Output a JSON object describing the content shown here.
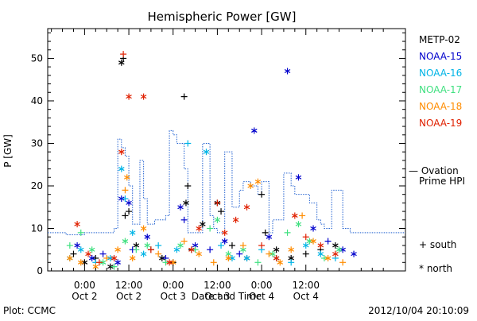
{
  "chart_data": {
    "type": "scatter",
    "title": "Hemispheric Power [GW]",
    "ylabel": "P [GW]",
    "xlabel": "Date and Time",
    "ylim": [
      0,
      57
    ],
    "xlim_hours": [
      -10,
      87
    ],
    "yticks": [
      0,
      10,
      20,
      30,
      40,
      50
    ],
    "xticks": [
      {
        "h": 0,
        "time": "0:00",
        "date": "Oct 2"
      },
      {
        "h": 12,
        "time": "12:00",
        "date": "Oct 2"
      },
      {
        "h": 24,
        "time": "0:00",
        "date": "Oct 3"
      },
      {
        "h": 36,
        "time": "12:00",
        "date": "Oct 3"
      },
      {
        "h": 48,
        "time": "0:00",
        "date": "Oct 4"
      },
      {
        "h": 60,
        "time": "12:00",
        "date": "Oct 4"
      }
    ],
    "series": [
      {
        "name": "METP-02",
        "color": "#000000",
        "points": [
          [
            -3,
            4,
            "s"
          ],
          [
            0,
            2,
            "n"
          ],
          [
            3,
            3,
            "s"
          ],
          [
            7,
            1,
            "n"
          ],
          [
            10,
            49,
            "n"
          ],
          [
            10.5,
            50,
            "s"
          ],
          [
            11,
            13,
            "s"
          ],
          [
            12,
            14,
            "s"
          ],
          [
            14,
            6,
            "n"
          ],
          [
            18,
            5,
            "s"
          ],
          [
            21,
            3,
            "n"
          ],
          [
            24,
            2,
            "s"
          ],
          [
            27,
            41,
            "s"
          ],
          [
            28,
            20,
            "s"
          ],
          [
            27.5,
            16,
            "n"
          ],
          [
            29,
            5,
            "s"
          ],
          [
            32,
            11,
            "n"
          ],
          [
            36,
            16,
            "n"
          ],
          [
            37,
            14,
            "s"
          ],
          [
            40,
            6,
            "s"
          ],
          [
            44,
            3,
            "n"
          ],
          [
            48,
            18,
            "s"
          ],
          [
            49,
            9,
            "s"
          ],
          [
            52,
            5,
            "n"
          ],
          [
            56,
            3,
            "n"
          ],
          [
            60,
            4,
            "s"
          ],
          [
            64,
            5,
            "s"
          ],
          [
            68,
            6,
            "n"
          ]
        ]
      },
      {
        "name": "NOAA-15",
        "color": "#0000cc",
        "points": [
          [
            -2,
            6,
            "n"
          ],
          [
            2,
            3,
            "n"
          ],
          [
            5,
            4,
            "s"
          ],
          [
            9,
            2,
            "n"
          ],
          [
            10,
            17,
            "n"
          ],
          [
            12,
            16,
            "n"
          ],
          [
            13,
            5,
            "s"
          ],
          [
            17,
            8,
            "n"
          ],
          [
            22,
            3,
            "s"
          ],
          [
            26,
            15,
            "n"
          ],
          [
            27,
            12,
            "s"
          ],
          [
            30,
            6,
            "n"
          ],
          [
            34,
            5,
            "s"
          ],
          [
            38,
            7,
            "n"
          ],
          [
            42,
            4,
            "s"
          ],
          [
            46,
            33,
            "n"
          ],
          [
            50,
            8,
            "n"
          ],
          [
            55,
            47,
            "n"
          ],
          [
            58,
            22,
            "n"
          ],
          [
            62,
            10,
            "n"
          ],
          [
            66,
            7,
            "s"
          ],
          [
            70,
            5,
            "n"
          ],
          [
            73,
            4,
            "n"
          ]
        ]
      },
      {
        "name": "NOAA-16",
        "color": "#00b4e6",
        "points": [
          [
            -4,
            3,
            "n"
          ],
          [
            -1,
            5,
            "n"
          ],
          [
            3,
            2,
            "s"
          ],
          [
            7,
            3,
            "n"
          ],
          [
            10,
            24,
            "n"
          ],
          [
            11,
            17,
            "s"
          ],
          [
            13,
            9,
            "n"
          ],
          [
            16,
            4,
            "n"
          ],
          [
            20,
            6,
            "s"
          ],
          [
            25,
            5,
            "n"
          ],
          [
            28,
            30,
            "s"
          ],
          [
            33,
            28,
            "n"
          ],
          [
            37,
            6,
            "s"
          ],
          [
            40,
            3,
            "n"
          ],
          [
            44,
            3,
            "n"
          ],
          [
            48,
            5,
            "s"
          ],
          [
            52,
            3,
            "n"
          ],
          [
            56,
            2,
            "s"
          ],
          [
            60,
            6,
            "n"
          ],
          [
            64,
            4,
            "n"
          ],
          [
            68,
            3,
            "s"
          ]
        ]
      },
      {
        "name": "NOAA-17",
        "color": "#40e080",
        "points": [
          [
            -4,
            6,
            "s"
          ],
          [
            -1,
            9,
            "s"
          ],
          [
            2,
            5,
            "n"
          ],
          [
            5,
            2,
            "n"
          ],
          [
            8,
            1,
            "s"
          ],
          [
            11,
            7,
            "n"
          ],
          [
            14,
            5,
            "s"
          ],
          [
            17,
            6,
            "n"
          ],
          [
            22,
            2,
            "s"
          ],
          [
            26,
            6,
            "n"
          ],
          [
            30,
            5,
            "s"
          ],
          [
            34,
            10,
            "s"
          ],
          [
            36,
            12,
            "n"
          ],
          [
            39,
            4,
            "n"
          ],
          [
            43,
            5,
            "n"
          ],
          [
            47,
            2,
            "s"
          ],
          [
            51,
            4,
            "n"
          ],
          [
            55,
            9,
            "s"
          ],
          [
            58,
            11,
            "n"
          ],
          [
            61,
            7,
            "n"
          ],
          [
            65,
            3,
            "s"
          ],
          [
            69,
            5,
            "n"
          ]
        ]
      },
      {
        "name": "NOAA-18",
        "color": "#ff8c00",
        "points": [
          [
            -4,
            3,
            "n"
          ],
          [
            -1,
            2,
            "n"
          ],
          [
            3,
            1,
            "n"
          ],
          [
            6,
            3,
            "s"
          ],
          [
            9,
            5,
            "n"
          ],
          [
            11,
            19,
            "s"
          ],
          [
            11.5,
            22,
            "n"
          ],
          [
            13,
            3,
            "n"
          ],
          [
            16,
            10,
            "n"
          ],
          [
            20,
            4,
            "s"
          ],
          [
            24,
            2,
            "n"
          ],
          [
            27,
            7,
            "s"
          ],
          [
            31,
            4,
            "n"
          ],
          [
            35,
            2,
            "s"
          ],
          [
            39,
            3,
            "n"
          ],
          [
            43,
            6,
            "s"
          ],
          [
            45,
            20,
            "n"
          ],
          [
            47,
            21,
            "n"
          ],
          [
            50,
            4,
            "s"
          ],
          [
            53,
            2,
            "n"
          ],
          [
            56,
            5,
            "n"
          ],
          [
            59,
            13,
            "s"
          ],
          [
            62,
            7,
            "n"
          ],
          [
            66,
            3,
            "n"
          ],
          [
            70,
            2,
            "s"
          ]
        ]
      },
      {
        "name": "NOAA-19",
        "color": "#e02000",
        "points": [
          [
            -2,
            11,
            "n"
          ],
          [
            1,
            4,
            "n"
          ],
          [
            4,
            2,
            "s"
          ],
          [
            8,
            3,
            "n"
          ],
          [
            10,
            28,
            "n"
          ],
          [
            10.5,
            51,
            "s"
          ],
          [
            12,
            41,
            "n"
          ],
          [
            16,
            41,
            "n"
          ],
          [
            18,
            5,
            "s"
          ],
          [
            23,
            2,
            "n"
          ],
          [
            29,
            5,
            "n"
          ],
          [
            31,
            10,
            "n"
          ],
          [
            36,
            16,
            "s"
          ],
          [
            38,
            9,
            "n"
          ],
          [
            41,
            12,
            "n"
          ],
          [
            44,
            15,
            "n"
          ],
          [
            48,
            6,
            "s"
          ],
          [
            52,
            3,
            "n"
          ],
          [
            57,
            13,
            "n"
          ],
          [
            60,
            8,
            "s"
          ],
          [
            64,
            6,
            "n"
          ],
          [
            68,
            4,
            "n"
          ]
        ]
      }
    ],
    "ovation": {
      "name": "Ovation Prime HPI",
      "color": "#2060d0",
      "steps": [
        [
          -10,
          9
        ],
        [
          -5,
          8.5
        ],
        [
          0,
          9
        ],
        [
          4,
          9
        ],
        [
          8,
          10
        ],
        [
          9,
          31
        ],
        [
          10,
          29
        ],
        [
          11,
          27
        ],
        [
          12,
          20
        ],
        [
          13,
          11
        ],
        [
          15,
          26
        ],
        [
          16,
          17
        ],
        [
          17,
          11
        ],
        [
          19,
          12
        ],
        [
          22,
          13
        ],
        [
          23,
          33
        ],
        [
          24,
          32
        ],
        [
          25,
          30
        ],
        [
          27,
          24
        ],
        [
          28,
          9
        ],
        [
          32,
          30
        ],
        [
          34,
          13
        ],
        [
          35,
          10
        ],
        [
          36,
          9
        ],
        [
          38,
          28
        ],
        [
          40,
          15
        ],
        [
          42,
          19
        ],
        [
          43,
          21
        ],
        [
          45,
          20
        ],
        [
          47,
          18
        ],
        [
          48,
          21
        ],
        [
          50,
          9
        ],
        [
          51,
          12
        ],
        [
          54,
          23
        ],
        [
          56,
          20
        ],
        [
          57,
          18
        ],
        [
          58,
          18
        ],
        [
          61,
          16
        ],
        [
          63,
          12
        ],
        [
          64,
          11
        ],
        [
          65,
          10
        ],
        [
          67,
          19
        ],
        [
          70,
          10
        ],
        [
          72,
          9
        ],
        [
          75,
          9
        ]
      ]
    },
    "grid": false,
    "legend_position": "right"
  },
  "legend_extra": {
    "ovation_label_line1": "— Ovation",
    "ovation_label_line2": "Prime HPI",
    "south_label": "+ south",
    "north_label": "* north"
  },
  "footer": {
    "plot_source": "Plot: CCMC",
    "timestamp": "2012/10/04 20:10:09"
  }
}
